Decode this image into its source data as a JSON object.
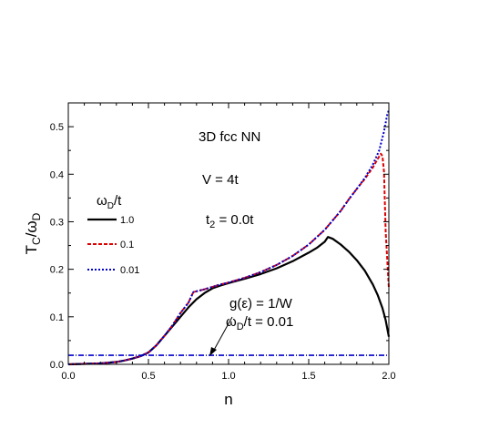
{
  "chart_data": {
    "type": "line",
    "xlabel": "n",
    "ylabel": {
      "main": "T",
      "sub1": "C",
      "sep": "/ω",
      "sub2": "D"
    },
    "xlim": [
      0.0,
      2.0
    ],
    "ylim": [
      0.0,
      0.55
    ],
    "xticks": [
      "0.0",
      "0.5",
      "1.0",
      "1.5",
      "2.0"
    ],
    "yticks": [
      "0.0",
      "0.1",
      "0.2",
      "0.3",
      "0.4",
      "0.5"
    ],
    "annotations": {
      "system": "3D fcc  NN",
      "v": "V = 4t",
      "t2": {
        "main": "t",
        "sub": "2",
        "rest": " = 0.0t"
      },
      "dos_line1": "g(ε) = 1/W",
      "dos_line2": {
        "main": "ω",
        "sub": "D",
        "rest": "/t = 0.01"
      }
    },
    "legend": {
      "title": {
        "main": "ω",
        "sub": "D",
        "rest": "/t"
      },
      "entries": [
        "1.0",
        "0.1",
        "0.01"
      ]
    },
    "series": [
      {
        "label": "1.0",
        "color": "#000000",
        "dash": "",
        "width": 2.2,
        "x": [
          0.0,
          0.1,
          0.2,
          0.3,
          0.35,
          0.4,
          0.45,
          0.5,
          0.55,
          0.6,
          0.65,
          0.7,
          0.75,
          0.8,
          0.85,
          0.9,
          0.95,
          1.0,
          1.1,
          1.2,
          1.3,
          1.4,
          1.5,
          1.55,
          1.6,
          1.62,
          1.65,
          1.7,
          1.75,
          1.8,
          1.85,
          1.9,
          1.93,
          1.96,
          1.98,
          2.0
        ],
        "y": [
          0.0,
          0.001,
          0.002,
          0.005,
          0.008,
          0.012,
          0.017,
          0.025,
          0.04,
          0.06,
          0.08,
          0.1,
          0.12,
          0.137,
          0.15,
          0.16,
          0.166,
          0.171,
          0.18,
          0.19,
          0.202,
          0.217,
          0.235,
          0.245,
          0.258,
          0.268,
          0.264,
          0.252,
          0.237,
          0.219,
          0.197,
          0.168,
          0.146,
          0.118,
          0.093,
          0.058
        ]
      },
      {
        "label": "0.1",
        "color": "#dd0000",
        "dash": "4,2",
        "width": 2.0,
        "x": [
          0.0,
          0.1,
          0.2,
          0.3,
          0.35,
          0.4,
          0.45,
          0.5,
          0.55,
          0.6,
          0.65,
          0.7,
          0.75,
          0.78,
          0.85,
          0.9,
          0.95,
          1.0,
          1.1,
          1.2,
          1.3,
          1.4,
          1.5,
          1.6,
          1.7,
          1.75,
          1.8,
          1.85,
          1.9,
          1.93,
          1.95,
          1.96,
          1.97,
          1.98,
          2.0
        ],
        "y": [
          0.0,
          0.001,
          0.002,
          0.005,
          0.008,
          0.012,
          0.017,
          0.025,
          0.04,
          0.06,
          0.082,
          0.108,
          0.13,
          0.152,
          0.158,
          0.163,
          0.168,
          0.172,
          0.182,
          0.194,
          0.209,
          0.228,
          0.252,
          0.283,
          0.323,
          0.347,
          0.369,
          0.39,
          0.414,
          0.432,
          0.443,
          0.438,
          0.405,
          0.28,
          0.16
        ]
      },
      {
        "label": "0.01",
        "color": "#0000cc",
        "dash": "2,2",
        "width": 2.0,
        "x": [
          0.0,
          0.1,
          0.2,
          0.3,
          0.35,
          0.4,
          0.45,
          0.5,
          0.55,
          0.6,
          0.65,
          0.7,
          0.75,
          0.78,
          0.85,
          0.9,
          0.95,
          1.0,
          1.1,
          1.2,
          1.3,
          1.4,
          1.5,
          1.6,
          1.7,
          1.75,
          1.8,
          1.85,
          1.9,
          1.94,
          1.97,
          1.99,
          2.0
        ],
        "y": [
          0.0,
          0.001,
          0.002,
          0.005,
          0.008,
          0.012,
          0.017,
          0.025,
          0.04,
          0.06,
          0.082,
          0.108,
          0.13,
          0.152,
          0.158,
          0.163,
          0.168,
          0.172,
          0.182,
          0.194,
          0.209,
          0.228,
          0.252,
          0.283,
          0.323,
          0.347,
          0.369,
          0.392,
          0.42,
          0.45,
          0.49,
          0.525,
          0.535
        ]
      },
      {
        "label": "g(ε) = 1/W",
        "color": "#0000cc",
        "dash": "6,2,1,2",
        "width": 1.6,
        "x": [
          0.0,
          2.0
        ],
        "y": [
          0.019,
          0.019
        ]
      }
    ]
  }
}
